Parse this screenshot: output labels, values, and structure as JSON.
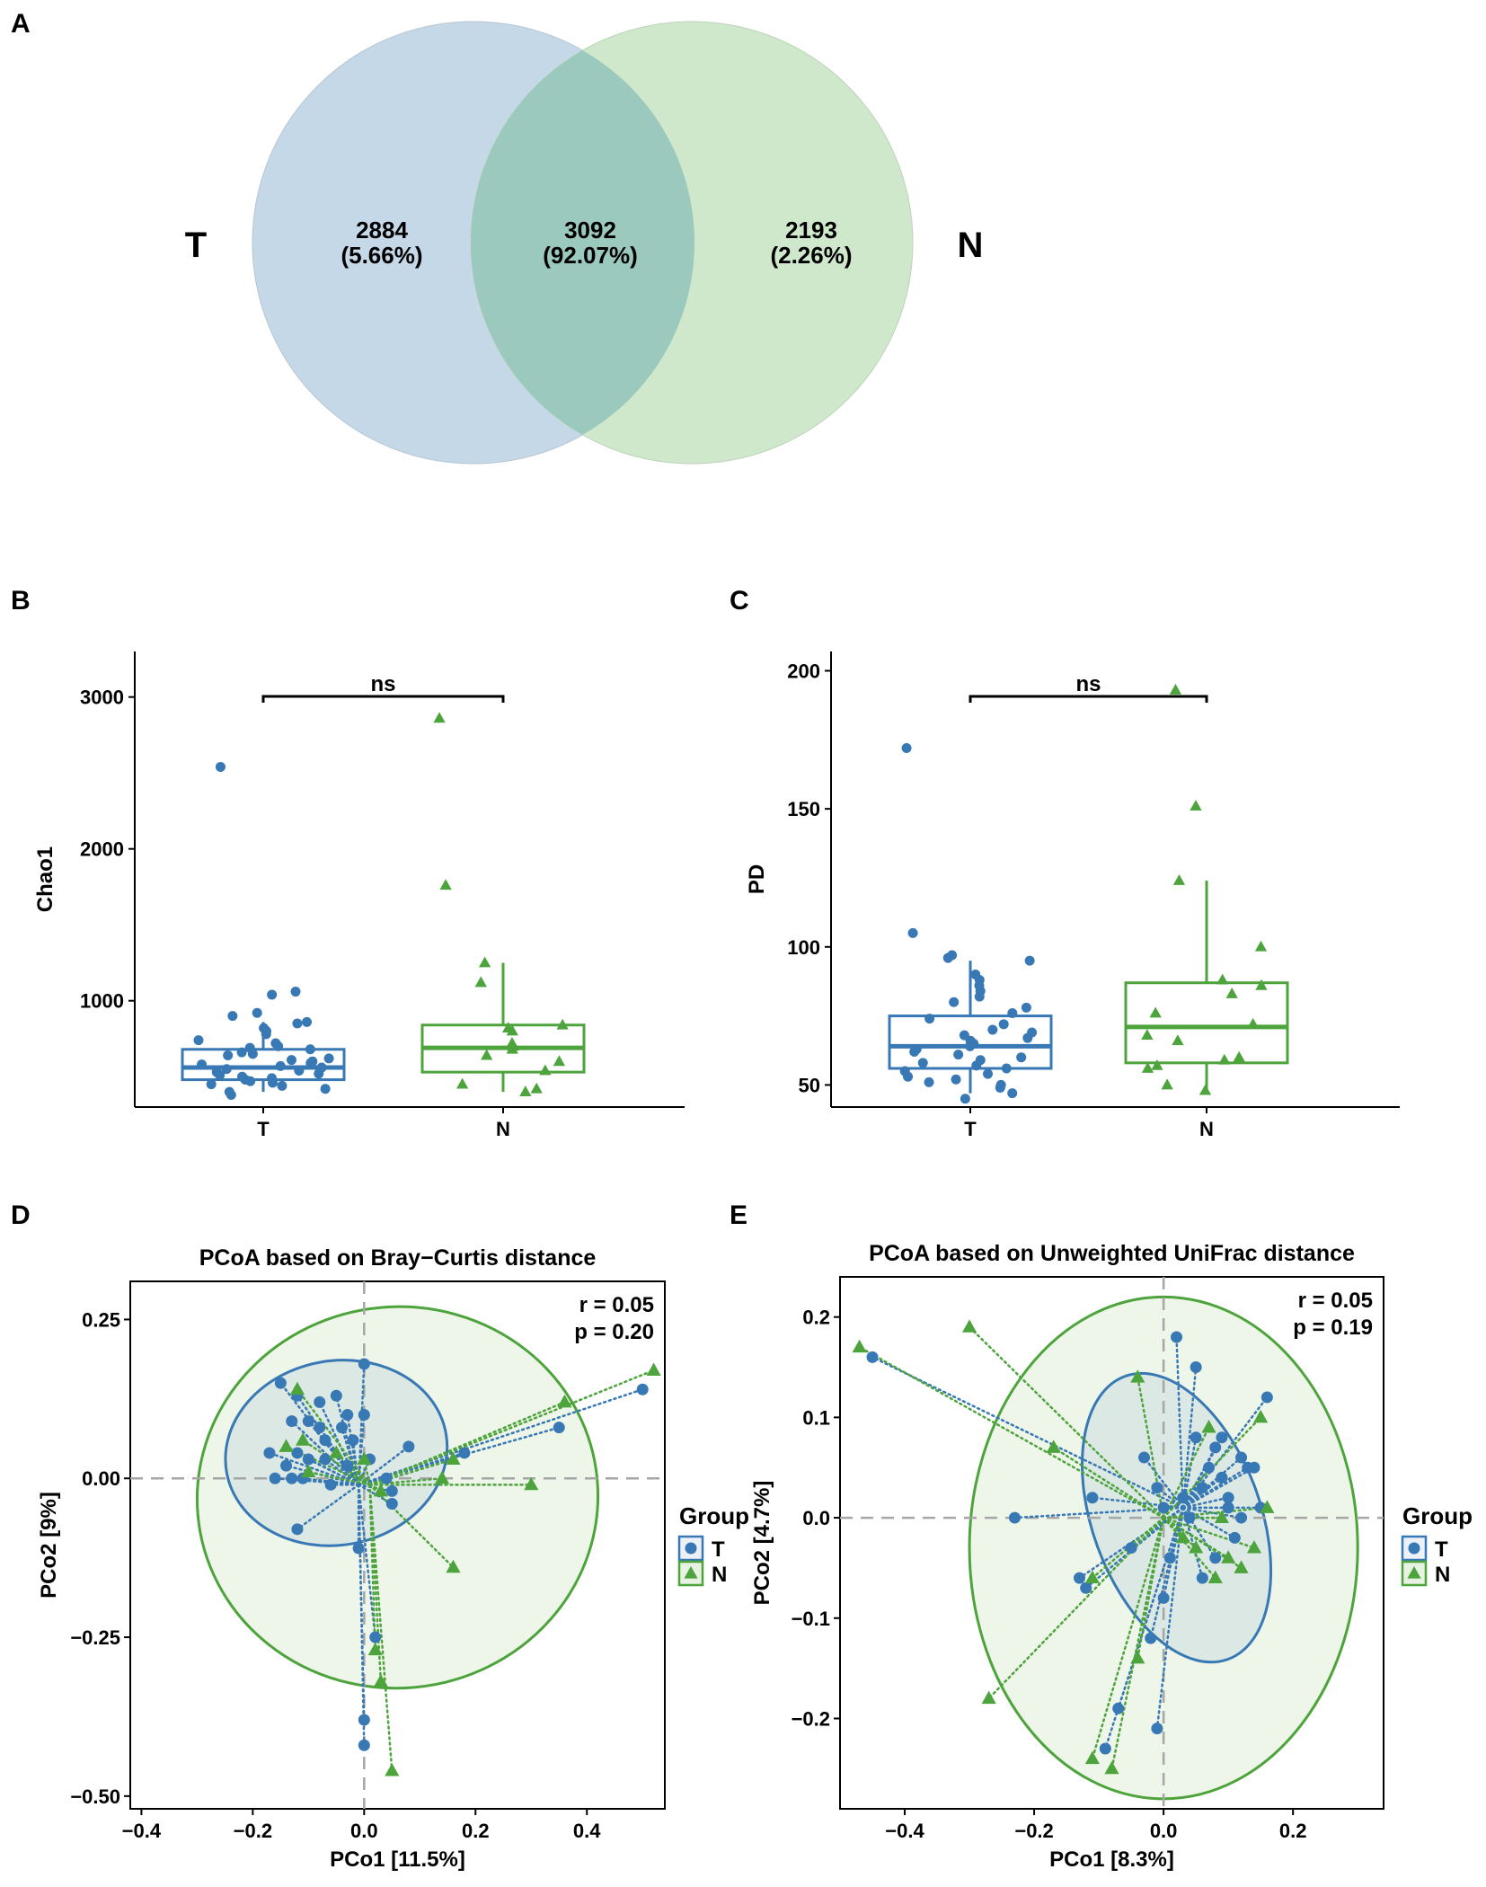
{
  "colors": {
    "T": "#3878b4",
    "N": "#4ea43c",
    "venn_T": "#c5d8e8",
    "venn_N": "#cfe7cb",
    "venn_overlap": "#9cc9bd",
    "ellipse_fill": "#e8f2e2"
  },
  "chart_data": [
    {
      "panel": "A",
      "type": "venn",
      "sets": [
        {
          "name": "T",
          "unique_count": "2884",
          "unique_pct": "(5.66%)"
        },
        {
          "name": "N",
          "unique_count": "2193",
          "unique_pct": "(2.26%)"
        }
      ],
      "overlap": {
        "count": "3092",
        "pct": "(92.07%)"
      }
    },
    {
      "panel": "B",
      "type": "boxplot",
      "ylabel": "Chao1",
      "categories": [
        "T",
        "N"
      ],
      "ylim": [
        300,
        3300
      ],
      "yticks": [
        1000,
        2000,
        3000
      ],
      "significance": "ns",
      "boxes": [
        {
          "group": "T",
          "q1": 480,
          "median": 560,
          "q3": 680,
          "whisker_low": 400,
          "whisker_high": 860
        },
        {
          "group": "N",
          "q1": 530,
          "median": 690,
          "q3": 840,
          "whisker_low": 400,
          "whisker_high": 1250
        }
      ],
      "points": {
        "T": [
          2540,
          1060,
          1040,
          920,
          900,
          860,
          850,
          820,
          800,
          780,
          740,
          720,
          700,
          690,
          680,
          660,
          650,
          640,
          620,
          610,
          600,
          590,
          580,
          570,
          560,
          550,
          540,
          530,
          520,
          510,
          500,
          490,
          480,
          470,
          460,
          450,
          440,
          420,
          400,
          380
        ],
        "N": [
          2860,
          1760,
          1250,
          1120,
          840,
          820,
          800,
          720,
          700,
          680,
          640,
          600,
          540,
          450,
          420,
          400
        ]
      }
    },
    {
      "panel": "C",
      "type": "boxplot",
      "ylabel": "PD",
      "categories": [
        "T",
        "N"
      ],
      "ylim": [
        42,
        207
      ],
      "yticks": [
        50,
        100,
        150,
        200
      ],
      "significance": "ns",
      "boxes": [
        {
          "group": "T",
          "q1": 56,
          "median": 64,
          "q3": 75,
          "whisker_low": 47,
          "whisker_high": 95
        },
        {
          "group": "N",
          "q1": 58,
          "median": 71,
          "q3": 87,
          "whisker_low": 47,
          "whisker_high": 124
        }
      ],
      "points": {
        "T": [
          172,
          105,
          97,
          96,
          95,
          90,
          88,
          86,
          84,
          82,
          80,
          78,
          76,
          74,
          72,
          70,
          69,
          68,
          67,
          66,
          65,
          64,
          63,
          62,
          61,
          60,
          59,
          58,
          57,
          56,
          55,
          54,
          53,
          52,
          51,
          50,
          49,
          47,
          45
        ],
        "N": [
          193,
          151,
          124,
          100,
          88,
          86,
          83,
          76,
          72,
          68,
          66,
          60,
          59,
          57,
          56,
          50,
          48
        ]
      }
    },
    {
      "panel": "D",
      "type": "scatter",
      "title": "PCoA based on Bray−Curtis distance",
      "xlabel": "PCo1 [11.5%]",
      "ylabel": "PCo2 [9%]",
      "xlim": [
        -0.42,
        0.54
      ],
      "ylim": [
        -0.52,
        0.31
      ],
      "xticks": [
        -0.4,
        -0.2,
        0.0,
        0.2,
        0.4
      ],
      "yticks": [
        -0.5,
        -0.25,
        0.0,
        0.25
      ],
      "xtick_labels": [
        "−0.4",
        "−0.2",
        "0.0",
        "0.2",
        "0.4"
      ],
      "ytick_labels": [
        "−0.50",
        "−0.25",
        "0.00",
        "0.25"
      ],
      "stat_r": "r = 0.05",
      "stat_p": "p = 0.20",
      "legend_title": "Group",
      "legend": [
        "T",
        "N"
      ],
      "centroids": {
        "T": [
          -0.01,
          -0.01
        ],
        "N": [
          0.01,
          -0.01
        ]
      },
      "ellipses": {
        "T": {
          "cx": -0.05,
          "cy": 0.04,
          "rx": 0.2,
          "ry": 0.145,
          "rot": -10
        },
        "N": {
          "cx": 0.06,
          "cy": -0.03,
          "rx": 0.36,
          "ry": 0.3,
          "rot": -5
        }
      },
      "series": [
        {
          "name": "T",
          "points": [
            [
              -0.15,
              0.15
            ],
            [
              -0.12,
              0.13
            ],
            [
              -0.13,
              0.09
            ],
            [
              -0.08,
              0.12
            ],
            [
              -0.05,
              0.13
            ],
            [
              -0.03,
              0.1
            ],
            [
              -0.1,
              0.09
            ],
            [
              -0.08,
              0.08
            ],
            [
              -0.04,
              0.08
            ],
            [
              -0.07,
              0.06
            ],
            [
              -0.02,
              0.06
            ],
            [
              -0.12,
              0.04
            ],
            [
              -0.14,
              0.02
            ],
            [
              -0.17,
              0.04
            ],
            [
              -0.1,
              0.03
            ],
            [
              -0.07,
              0.03
            ],
            [
              -0.03,
              0.02
            ],
            [
              -0.13,
              0.0
            ],
            [
              -0.11,
              0.0
            ],
            [
              -0.16,
              0.0
            ],
            [
              -0.06,
              -0.01
            ],
            [
              0.01,
              0.03
            ],
            [
              0.0,
              0.1
            ],
            [
              0.0,
              0.18
            ],
            [
              0.04,
              0.0
            ],
            [
              0.08,
              0.05
            ],
            [
              0.05,
              -0.02
            ],
            [
              0.05,
              -0.04
            ],
            [
              -0.12,
              -0.08
            ],
            [
              -0.01,
              -0.11
            ],
            [
              0.02,
              -0.25
            ],
            [
              0.0,
              -0.38
            ],
            [
              0.0,
              -0.42
            ],
            [
              0.18,
              0.04
            ],
            [
              0.35,
              0.08
            ],
            [
              0.5,
              0.14
            ]
          ]
        },
        {
          "name": "N",
          "points": [
            [
              -0.12,
              0.14
            ],
            [
              -0.14,
              0.05
            ],
            [
              -0.1,
              0.01
            ],
            [
              -0.11,
              0.06
            ],
            [
              -0.05,
              0.04
            ],
            [
              0.0,
              0.03
            ],
            [
              0.03,
              -0.02
            ],
            [
              0.14,
              0.0
            ],
            [
              0.16,
              0.03
            ],
            [
              0.3,
              -0.01
            ],
            [
              0.36,
              0.12
            ],
            [
              0.52,
              0.17
            ],
            [
              0.16,
              -0.14
            ],
            [
              0.02,
              -0.27
            ],
            [
              0.03,
              -0.32
            ],
            [
              0.05,
              -0.46
            ]
          ]
        }
      ]
    },
    {
      "panel": "E",
      "type": "scatter",
      "title": "PCoA based on Unweighted UniFrac distance",
      "xlabel": "PCo1 [8.3%]",
      "ylabel": "PCo2 [4.7%]",
      "xlim": [
        -0.5,
        0.34
      ],
      "ylim": [
        -0.29,
        0.24
      ],
      "xticks": [
        -0.4,
        -0.2,
        0.0,
        0.2
      ],
      "yticks": [
        -0.2,
        -0.1,
        0.0,
        0.1,
        0.2
      ],
      "xtick_labels": [
        "−0.4",
        "−0.2",
        "0.0",
        "0.2"
      ],
      "ytick_labels": [
        "−0.2",
        "−0.1",
        "0.0",
        "0.1",
        "0.2"
      ],
      "stat_r": "r = 0.05",
      "stat_p": "p = 0.19",
      "legend_title": "Group",
      "legend": [
        "T",
        "N"
      ],
      "centroids": {
        "T": [
          0.03,
          0.01
        ],
        "N": [
          0.0,
          0.0
        ]
      },
      "ellipses": {
        "T": {
          "cx": 0.02,
          "cy": 0.0,
          "rx": 0.13,
          "ry": 0.15,
          "rot": -20
        },
        "N": {
          "cx": 0.0,
          "cy": -0.03,
          "rx": 0.3,
          "ry": 0.25,
          "rot": 0
        }
      },
      "series": [
        {
          "name": "T",
          "points": [
            [
              -0.45,
              0.16
            ],
            [
              -0.23,
              0.0
            ],
            [
              -0.11,
              0.02
            ],
            [
              -0.12,
              -0.07
            ],
            [
              -0.13,
              -0.06
            ],
            [
              -0.05,
              -0.03
            ],
            [
              -0.03,
              0.06
            ],
            [
              -0.01,
              0.03
            ],
            [
              0.02,
              0.18
            ],
            [
              0.05,
              0.15
            ],
            [
              0.0,
              0.01
            ],
            [
              0.01,
              -0.04
            ],
            [
              0.0,
              -0.08
            ],
            [
              -0.02,
              -0.12
            ],
            [
              -0.09,
              -0.23
            ],
            [
              -0.07,
              -0.19
            ],
            [
              -0.01,
              -0.21
            ],
            [
              0.03,
              0.02
            ],
            [
              0.04,
              0.0
            ],
            [
              0.06,
              0.03
            ],
            [
              0.07,
              0.05
            ],
            [
              0.08,
              0.07
            ],
            [
              0.09,
              0.04
            ],
            [
              0.1,
              0.01
            ],
            [
              0.11,
              -0.02
            ],
            [
              0.12,
              0.06
            ],
            [
              0.13,
              0.05
            ],
            [
              0.14,
              0.05
            ],
            [
              0.15,
              0.01
            ],
            [
              0.16,
              0.12
            ],
            [
              0.12,
              0.0
            ],
            [
              0.08,
              -0.04
            ],
            [
              0.06,
              -0.06
            ],
            [
              0.05,
              0.08
            ],
            [
              0.09,
              0.08
            ],
            [
              0.1,
              0.02
            ]
          ]
        },
        {
          "name": "N",
          "points": [
            [
              -0.47,
              0.17
            ],
            [
              -0.3,
              0.19
            ],
            [
              -0.17,
              0.07
            ],
            [
              -0.27,
              -0.18
            ],
            [
              -0.11,
              -0.24
            ],
            [
              -0.08,
              -0.25
            ],
            [
              -0.04,
              -0.14
            ],
            [
              -0.11,
              -0.06
            ],
            [
              -0.04,
              0.14
            ],
            [
              0.07,
              0.09
            ],
            [
              0.15,
              0.1
            ],
            [
              0.14,
              -0.03
            ],
            [
              0.1,
              -0.04
            ],
            [
              0.08,
              -0.06
            ],
            [
              0.05,
              -0.03
            ],
            [
              0.09,
              0.0
            ],
            [
              0.12,
              -0.05
            ],
            [
              0.03,
              -0.02
            ],
            [
              0.16,
              0.01
            ]
          ]
        }
      ]
    }
  ]
}
